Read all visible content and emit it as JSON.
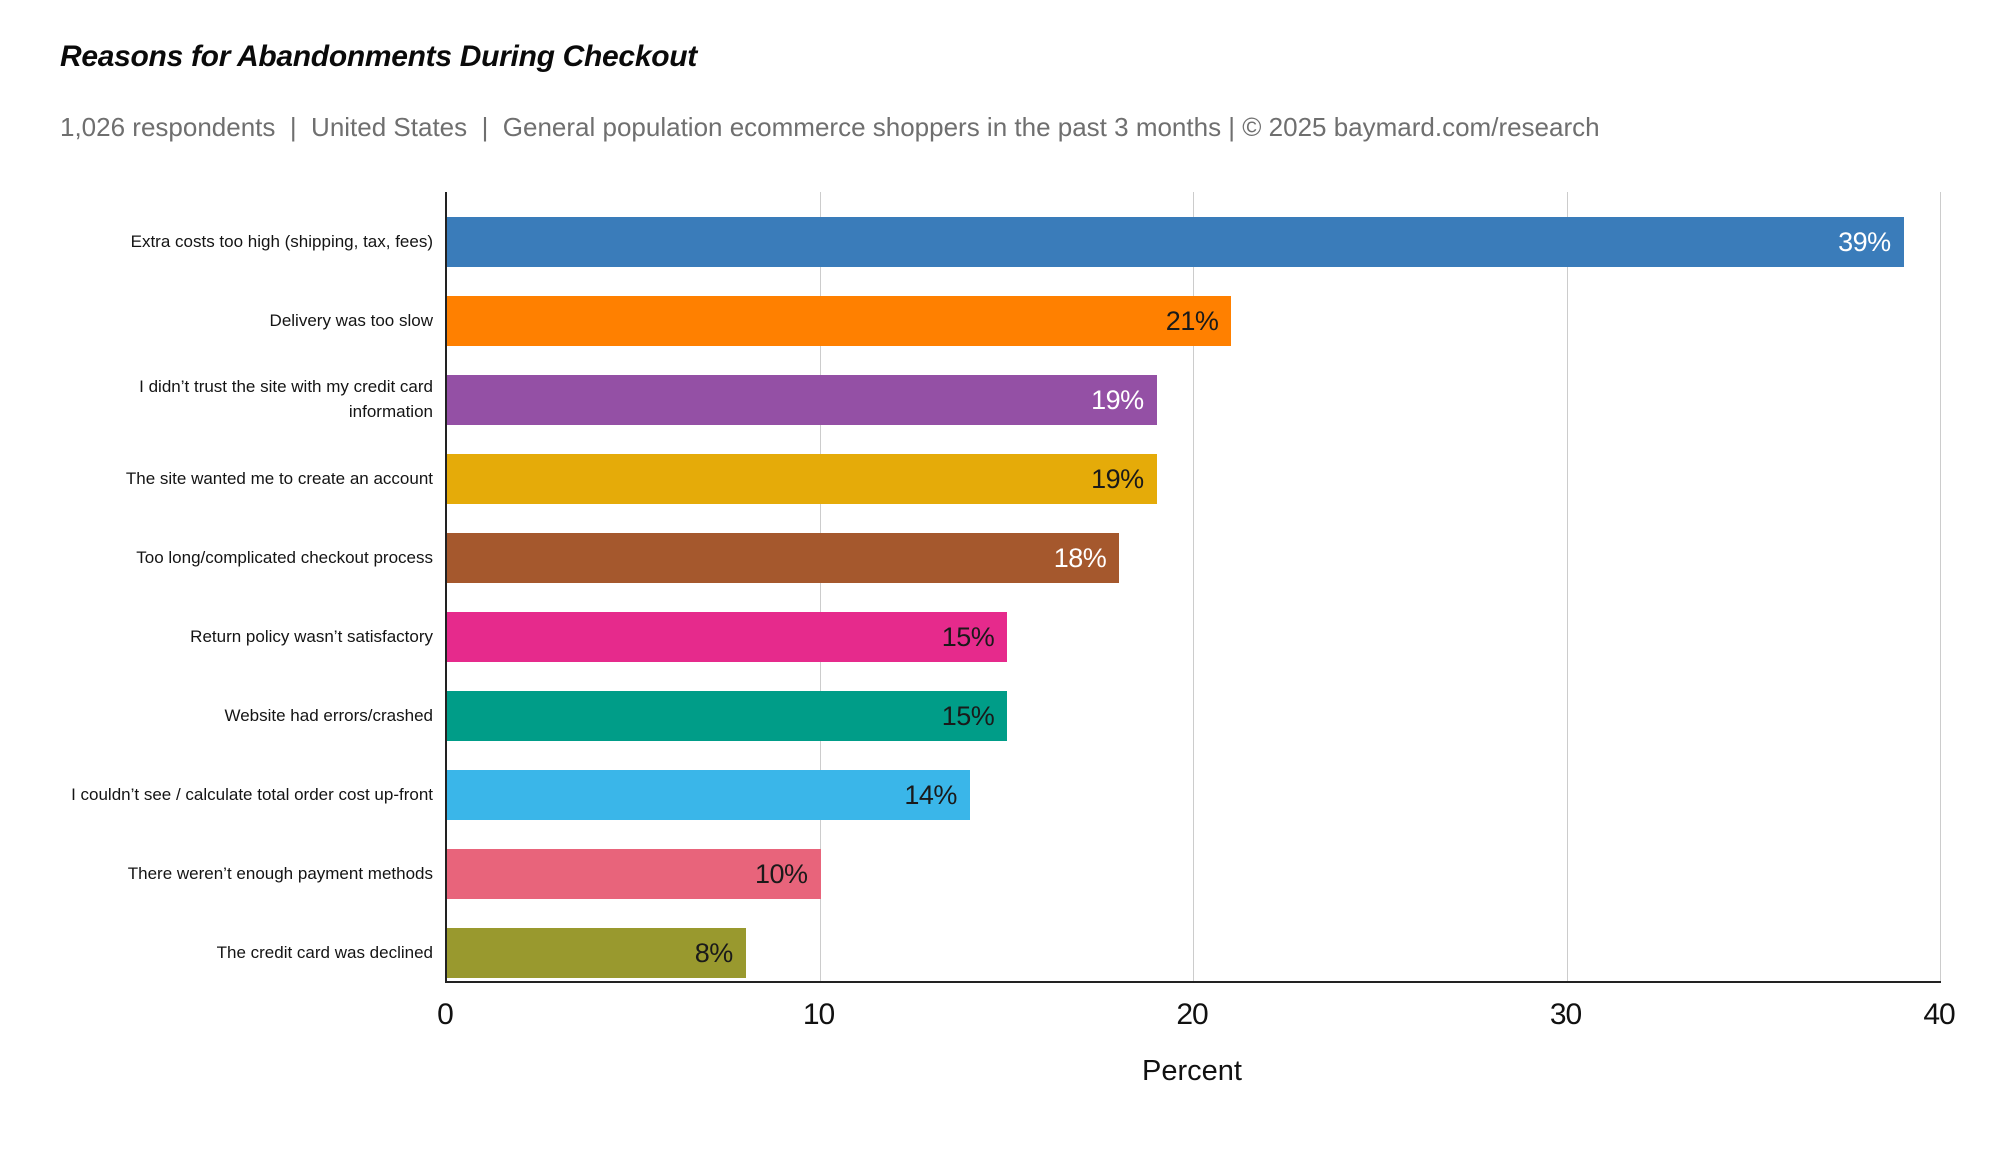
{
  "header": {
    "title": "Reasons for Abandonments During Checkout",
    "subtitle": "1,026 respondents  |  United States  |  General population ecommerce shoppers in the past 3 months | © 2025 baymard.com/research"
  },
  "chart_data": {
    "type": "bar",
    "orientation": "horizontal",
    "title": "Reasons for Abandonments During Checkout",
    "xlabel": "Percent",
    "ylabel": "",
    "xlim": [
      0,
      40
    ],
    "xticks": [
      0,
      10,
      20,
      30,
      40
    ],
    "grid": true,
    "legend": false,
    "categories": [
      "Extra costs too high (shipping, tax, fees)",
      "Delivery was too slow",
      "I didn’t trust the site with my credit card information",
      "The site wanted me to create an account",
      "Too long/complicated checkout process",
      "Return policy wasn’t satisfactory",
      "Website had errors/crashed",
      "I couldn’t see / calculate total order cost up-front",
      "There weren’t enough payment methods",
      "The credit card was declined"
    ],
    "values": [
      39,
      21,
      19,
      19,
      18,
      15,
      15,
      14,
      10,
      8
    ],
    "value_labels": [
      "39%",
      "21%",
      "19%",
      "19%",
      "18%",
      "15%",
      "15%",
      "14%",
      "10%",
      "8%"
    ],
    "bar_colors": [
      "#3a7cba",
      "#ff8000",
      "#9450a5",
      "#e5ab09",
      "#a5582d",
      "#e62a8c",
      "#009d88",
      "#3ab6e9",
      "#e8647b",
      "#99992e"
    ],
    "value_label_colors": [
      "#ffffff",
      "#1a1a1a",
      "#ffffff",
      "#1a1a1a",
      "#ffffff",
      "#1a1a1a",
      "#1a1a1a",
      "#1a1a1a",
      "#1a1a1a",
      "#1a1a1a"
    ],
    "gridline_color": "#cccccc",
    "axis_color": "#222222"
  }
}
